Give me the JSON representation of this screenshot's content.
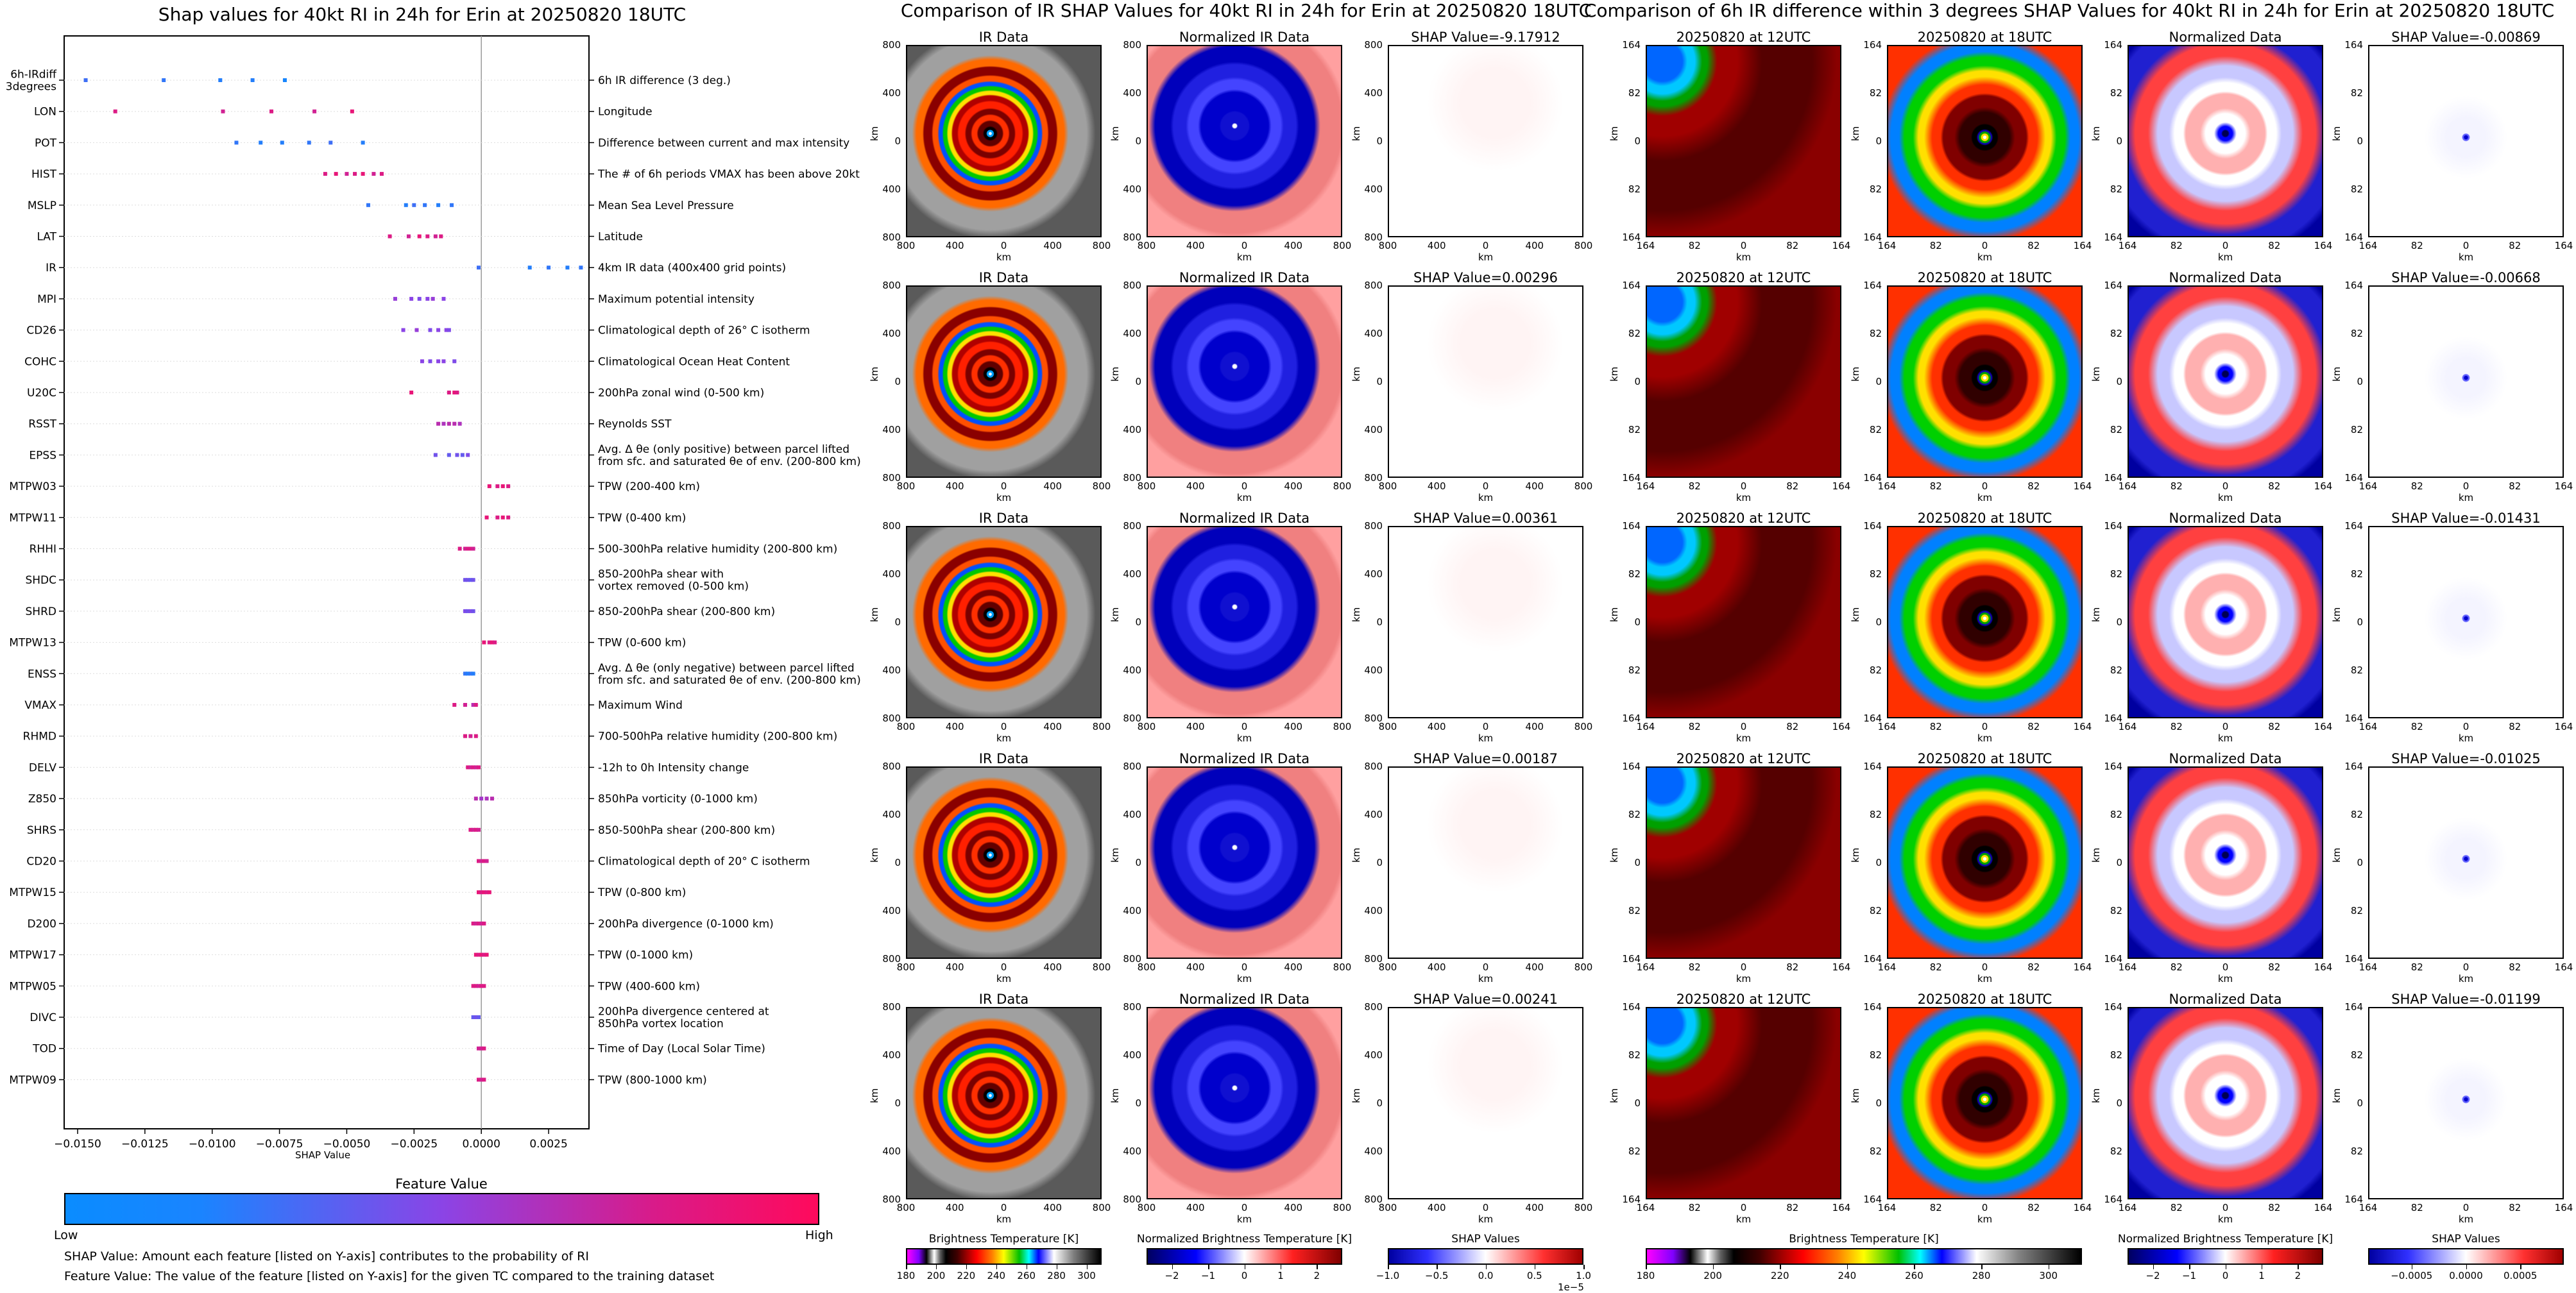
{
  "chart_data": [
    {
      "type": "scatter",
      "title": "Shap values for 40kt RI in 24h for Erin at 20250820 18UTC",
      "xlabel": "SHAP Value",
      "xlim": [
        -0.0155,
        0.004
      ],
      "xticks": [
        "−0.0150",
        "−0.0125",
        "−0.0100",
        "−0.0075",
        "−0.0050",
        "−0.0025",
        "0.0000",
        "0.0025"
      ],
      "xtick_values": [
        -0.015,
        -0.0125,
        -0.01,
        -0.0075,
        -0.005,
        -0.0025,
        0.0,
        0.0025
      ],
      "colorbar": {
        "label": "Feature Value",
        "low": "Low",
        "high": "High",
        "colors": [
          "#0a8cff",
          "#8b44e6",
          "#ff0a5c"
        ]
      },
      "features": [
        {
          "name": "6h-IRdiff\n3degrees",
          "desc": "6h IR difference (3 deg.)",
          "points": [
            [
              -0.0147,
              0.2
            ],
            [
              -0.0118,
              0.15
            ],
            [
              -0.0097,
              0.1
            ],
            [
              -0.0085,
              0.1
            ],
            [
              -0.0073,
              0.05
            ]
          ]
        },
        {
          "name": "LON",
          "desc": "Longitude",
          "points": [
            [
              -0.0136,
              0.85
            ],
            [
              -0.0096,
              0.8
            ],
            [
              -0.0078,
              0.85
            ],
            [
              -0.0062,
              0.8
            ],
            [
              -0.0048,
              0.9
            ]
          ]
        },
        {
          "name": "POT",
          "desc": "Difference between current and max intensity",
          "points": [
            [
              -0.0091,
              0.15
            ],
            [
              -0.0082,
              0.1
            ],
            [
              -0.0074,
              0.1
            ],
            [
              -0.0064,
              0.15
            ],
            [
              -0.0056,
              0.2
            ],
            [
              -0.0044,
              0.1
            ]
          ]
        },
        {
          "name": "HIST",
          "desc": "The # of 6h periods VMAX has been above 20kt",
          "points": [
            [
              -0.0058,
              0.85
            ],
            [
              -0.0054,
              0.9
            ],
            [
              -0.005,
              0.8
            ],
            [
              -0.0047,
              0.85
            ],
            [
              -0.0044,
              0.9
            ],
            [
              -0.004,
              0.8
            ],
            [
              -0.0037,
              0.85
            ]
          ]
        },
        {
          "name": "MSLP",
          "desc": "Mean Sea Level Pressure",
          "points": [
            [
              -0.0042,
              0.15
            ],
            [
              -0.0028,
              0.1
            ],
            [
              -0.0025,
              0.2
            ],
            [
              -0.0021,
              0.15
            ],
            [
              -0.0016,
              0.1
            ],
            [
              -0.0011,
              0.15
            ]
          ]
        },
        {
          "name": "LAT",
          "desc": "Latitude",
          "points": [
            [
              -0.0034,
              0.85
            ],
            [
              -0.0027,
              0.8
            ],
            [
              -0.0023,
              0.9
            ],
            [
              -0.002,
              0.85
            ],
            [
              -0.0017,
              0.8
            ],
            [
              -0.0015,
              0.85
            ]
          ]
        },
        {
          "name": "IR",
          "desc": "4km IR data (400x400 grid points)",
          "points": [
            [
              -0.0001,
              0.2
            ],
            [
              0.0018,
              0.1
            ],
            [
              0.0025,
              0.15
            ],
            [
              0.0032,
              0.1
            ],
            [
              0.0037,
              0.15
            ]
          ]
        },
        {
          "name": "MPI",
          "desc": "Maximum potential intensity",
          "points": [
            [
              -0.0032,
              0.55
            ],
            [
              -0.0026,
              0.5
            ],
            [
              -0.0023,
              0.45
            ],
            [
              -0.002,
              0.5
            ],
            [
              -0.0018,
              0.55
            ],
            [
              -0.0014,
              0.5
            ]
          ]
        },
        {
          "name": "CD26",
          "desc": "Climatological depth of 26° C isotherm",
          "points": [
            [
              -0.0029,
              0.5
            ],
            [
              -0.0024,
              0.55
            ],
            [
              -0.0019,
              0.45
            ],
            [
              -0.0016,
              0.5
            ],
            [
              -0.0013,
              0.5
            ],
            [
              -0.0012,
              0.45
            ]
          ]
        },
        {
          "name": "COHC",
          "desc": "Climatological Ocean Heat Content",
          "points": [
            [
              -0.0022,
              0.5
            ],
            [
              -0.0019,
              0.45
            ],
            [
              -0.0016,
              0.5
            ],
            [
              -0.0014,
              0.5
            ],
            [
              -0.001,
              0.45
            ]
          ]
        },
        {
          "name": "U20C",
          "desc": "200hPa zonal wind (0-500 km)",
          "points": [
            [
              -0.0026,
              0.9
            ],
            [
              -0.0012,
              0.85
            ],
            [
              -0.001,
              0.9
            ],
            [
              -0.0009,
              0.85
            ]
          ]
        },
        {
          "name": "RSST",
          "desc": "Reynolds SST",
          "points": [
            [
              -0.0016,
              0.7
            ],
            [
              -0.0014,
              0.65
            ],
            [
              -0.0012,
              0.7
            ],
            [
              -0.001,
              0.7
            ],
            [
              -0.0008,
              0.65
            ]
          ]
        },
        {
          "name": "EPSS",
          "desc": "Avg. Δ θe (only positive) between parcel lifted\nfrom sfc. and saturated θe of env. (200-800 km)",
          "points": [
            [
              -0.0017,
              0.4
            ],
            [
              -0.0012,
              0.35
            ],
            [
              -0.0009,
              0.4
            ],
            [
              -0.0007,
              0.35
            ],
            [
              -0.0005,
              0.45
            ]
          ]
        },
        {
          "name": "MTPW03",
          "desc": "TPW (200-400 km)",
          "points": [
            [
              0.0003,
              0.9
            ],
            [
              0.0006,
              0.85
            ],
            [
              0.0008,
              0.9
            ],
            [
              0.001,
              0.85
            ]
          ]
        },
        {
          "name": "MTPW11",
          "desc": "TPW (0-400 km)",
          "points": [
            [
              0.0002,
              0.9
            ],
            [
              0.0006,
              0.85
            ],
            [
              0.0008,
              0.9
            ],
            [
              0.001,
              0.85
            ]
          ]
        },
        {
          "name": "RHHI",
          "desc": "500-300hPa relative humidity (200-800 km)",
          "points": [
            [
              -0.0008,
              0.85
            ],
            [
              -0.0006,
              0.8
            ],
            [
              -0.0005,
              0.85
            ],
            [
              -0.0004,
              0.85
            ],
            [
              -0.0003,
              0.8
            ]
          ]
        },
        {
          "name": "SHDC",
          "desc": "850-200hPa shear with\nvortex removed (0-500 km)",
          "points": [
            [
              -0.0006,
              0.4
            ],
            [
              -0.0005,
              0.4
            ],
            [
              -0.0004,
              0.35
            ],
            [
              -0.0003,
              0.4
            ]
          ]
        },
        {
          "name": "SHRD",
          "desc": "850-200hPa shear (200-800 km)",
          "points": [
            [
              -0.0006,
              0.45
            ],
            [
              -0.0005,
              0.4
            ],
            [
              -0.0004,
              0.45
            ],
            [
              -0.0003,
              0.4
            ]
          ]
        },
        {
          "name": "MTPW13",
          "desc": "TPW (0-600 km)",
          "points": [
            [
              0.0001,
              0.9
            ],
            [
              0.0003,
              0.85
            ],
            [
              0.0004,
              0.9
            ],
            [
              0.0005,
              0.85
            ]
          ]
        },
        {
          "name": "ENSS",
          "desc": "Avg. Δ θe (only negative) between parcel lifted\nfrom sfc. and saturated θe of env. (200-800 km)",
          "points": [
            [
              -0.0006,
              0.15
            ],
            [
              -0.0005,
              0.1
            ],
            [
              -0.0004,
              0.15
            ],
            [
              -0.0003,
              0.1
            ]
          ]
        },
        {
          "name": "VMAX",
          "desc": "Maximum Wind",
          "points": [
            [
              -0.001,
              0.85
            ],
            [
              -0.0006,
              0.8
            ],
            [
              -0.0003,
              0.7
            ],
            [
              -0.0002,
              0.85
            ]
          ]
        },
        {
          "name": "RHMD",
          "desc": "700-500hPa relative humidity (200-800 km)",
          "points": [
            [
              -0.0006,
              0.85
            ],
            [
              -0.0004,
              0.8
            ],
            [
              -0.0002,
              0.85
            ]
          ]
        },
        {
          "name": "DELV",
          "desc": "-12h to 0h Intensity change",
          "points": [
            [
              -0.0005,
              0.85
            ],
            [
              -0.0004,
              0.8
            ],
            [
              -0.0003,
              0.85
            ],
            [
              -0.0002,
              0.8
            ],
            [
              -0.0001,
              0.85
            ]
          ]
        },
        {
          "name": "Z850",
          "desc": "850hPa vorticity (0-1000 km)",
          "points": [
            [
              -0.0002,
              0.7
            ],
            [
              0.0,
              0.6
            ],
            [
              0.0002,
              0.65
            ],
            [
              0.0004,
              0.7
            ]
          ]
        },
        {
          "name": "SHRS",
          "desc": "850-500hPa shear (200-800 km)",
          "points": [
            [
              -0.0004,
              0.85
            ],
            [
              -0.0003,
              0.8
            ],
            [
              -0.0002,
              0.85
            ],
            [
              -0.0001,
              0.8
            ]
          ]
        },
        {
          "name": "CD20",
          "desc": "Climatological depth of 20° C isotherm",
          "points": [
            [
              -0.0001,
              0.85
            ],
            [
              0.0,
              0.8
            ],
            [
              0.0001,
              0.85
            ],
            [
              0.0002,
              0.8
            ]
          ]
        },
        {
          "name": "MTPW15",
          "desc": "TPW (0-800 km)",
          "points": [
            [
              -0.0001,
              0.9
            ],
            [
              0.0,
              0.85
            ],
            [
              0.0001,
              0.9
            ],
            [
              0.0002,
              0.85
            ],
            [
              0.0003,
              0.9
            ]
          ]
        },
        {
          "name": "D200",
          "desc": "200hPa divergence (0-1000 km)",
          "points": [
            [
              -0.0003,
              0.85
            ],
            [
              -0.0002,
              0.8
            ],
            [
              -0.0001,
              0.85
            ],
            [
              0.0,
              0.8
            ],
            [
              0.0001,
              0.85
            ]
          ]
        },
        {
          "name": "MTPW17",
          "desc": "TPW (0-1000 km)",
          "points": [
            [
              -0.0002,
              0.9
            ],
            [
              -0.0001,
              0.85
            ],
            [
              0.0,
              0.9
            ],
            [
              0.0001,
              0.85
            ],
            [
              0.0002,
              0.9
            ]
          ]
        },
        {
          "name": "MTPW05",
          "desc": "TPW (400-600 km)",
          "points": [
            [
              -0.0003,
              0.85
            ],
            [
              -0.0002,
              0.85
            ],
            [
              -0.0001,
              0.8
            ],
            [
              0.0,
              0.85
            ],
            [
              0.0001,
              0.85
            ]
          ]
        },
        {
          "name": "DIVC",
          "desc": "200hPa divergence centered at\n850hPa vortex location",
          "points": [
            [
              -0.0003,
              0.35
            ],
            [
              -0.0002,
              0.4
            ],
            [
              -0.0001,
              0.35
            ]
          ]
        },
        {
          "name": "TOD",
          "desc": "Time of Day (Local Solar Time)",
          "points": [
            [
              -0.0001,
              0.8
            ],
            [
              0.0,
              0.8
            ],
            [
              0.0001,
              0.85
            ]
          ]
        },
        {
          "name": "MTPW09",
          "desc": "TPW (800-1000 km)",
          "points": [
            [
              -0.0001,
              0.85
            ],
            [
              0.0,
              0.8
            ],
            [
              0.0001,
              0.85
            ]
          ]
        }
      ]
    },
    {
      "type": "heatmap",
      "title": "Comparison of IR SHAP Values for 40kt RI in 24h for Erin at 20250820 18UTC",
      "column_titles": [
        "IR Data",
        "Normalized IR Data"
      ],
      "shap_titles": [
        "SHAP Value=-9.17912",
        "SHAP Value=0.00296",
        "SHAP Value=0.00361",
        "SHAP Value=0.00187",
        "SHAP Value=0.00241"
      ],
      "xticks": [
        "800",
        "400",
        "0",
        "400",
        "800"
      ],
      "yticks": [
        "800",
        "400",
        "0",
        "400",
        "800"
      ],
      "axis_label": "km",
      "colorbars": [
        {
          "label": "Brightness Temperature [K]",
          "ticks": [
            "180",
            "200",
            "220",
            "240",
            "260",
            "280",
            "300"
          ],
          "range": [
            180,
            310
          ]
        },
        {
          "label": "Normalized Brightness Temperature [K]",
          "ticks": [
            "−2",
            "−1",
            "0",
            "1",
            "2"
          ],
          "range": [
            -2.7,
            2.7
          ]
        },
        {
          "label": "SHAP Values",
          "ticks": [
            "−1.0",
            "−0.5",
            "0.0",
            "0.5",
            "1.0"
          ],
          "range": [
            -1.0,
            1.0
          ],
          "exponent": "1e−5"
        }
      ]
    },
    {
      "type": "heatmap",
      "title": "Comparison of 6h IR difference within 3 degrees SHAP Values for 40kt RI in 24h for Erin at 20250820 18UTC",
      "column_titles": [
        "20250820 at 12UTC",
        "20250820 at 18UTC",
        "Normalized Data"
      ],
      "shap_titles": [
        "SHAP Value=-0.00869",
        "SHAP Value=-0.00668",
        "SHAP Value=-0.01431",
        "SHAP Value=-0.01025",
        "SHAP Value=-0.01199"
      ],
      "xticks": [
        "164",
        "82",
        "0",
        "82",
        "164"
      ],
      "yticks": [
        "164",
        "82",
        "0",
        "82",
        "164"
      ],
      "axis_label": "km",
      "colorbars": [
        {
          "label": "Brightness Temperature [K]",
          "ticks": [
            "180",
            "200",
            "220",
            "240",
            "260",
            "280",
            "300"
          ],
          "range": [
            180,
            310
          ]
        },
        {
          "label": "Normalized Brightness Temperature [K]",
          "ticks": [
            "−2",
            "−1",
            "0",
            "1",
            "2"
          ],
          "range": [
            -2.7,
            2.7
          ]
        },
        {
          "label": "SHAP Values",
          "ticks": [
            "−0.0005",
            "0.0000",
            "0.0005"
          ],
          "range": [
            -0.0009,
            0.0009
          ]
        }
      ]
    }
  ],
  "notes": {
    "shap": "SHAP Value: Amount each feature [listed on Y-axis] contributes to the probability of RI",
    "feature": "Feature Value: The value of the feature [listed on Y-axis] for the given TC compared to the training dataset"
  }
}
